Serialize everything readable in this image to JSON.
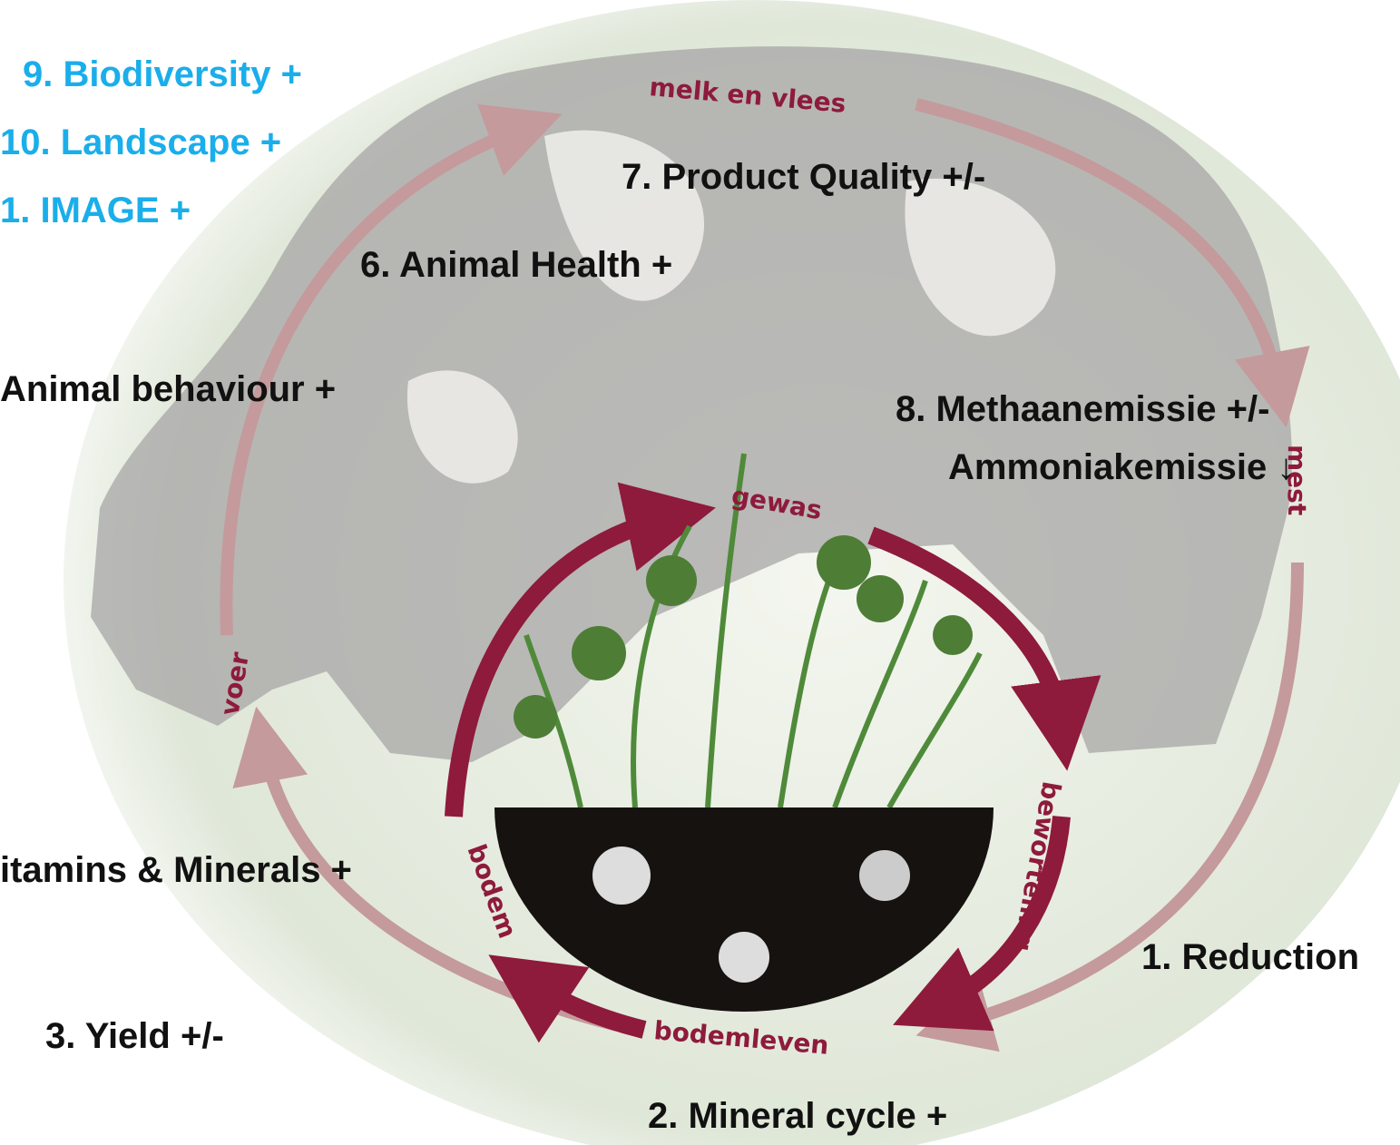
{
  "labels": {
    "biodiversity": "9. Biodiversity +",
    "landscape": "10. Landscape +",
    "image": "1. IMAGE +",
    "product_quality": "7. Product Quality  +/-",
    "animal_health": "6. Animal Health +",
    "animal_behaviour": "Animal behaviour +",
    "methane": "8. Methaanemissie +/-",
    "ammonia": "Ammoniakemissie ↓",
    "vitamins": "itamins & Minerals +",
    "reduction": "1. Reduction",
    "yield": "3. Yield +/-",
    "mineral_cycle": "2. Mineral cycle +"
  },
  "cycle": {
    "milk_meat": "melk en vlees",
    "manure": "mest",
    "rooting": "beworteling",
    "soil_life": "bodemleven",
    "soil": "bodem",
    "crop": "gewas",
    "feed": "voer"
  }
}
